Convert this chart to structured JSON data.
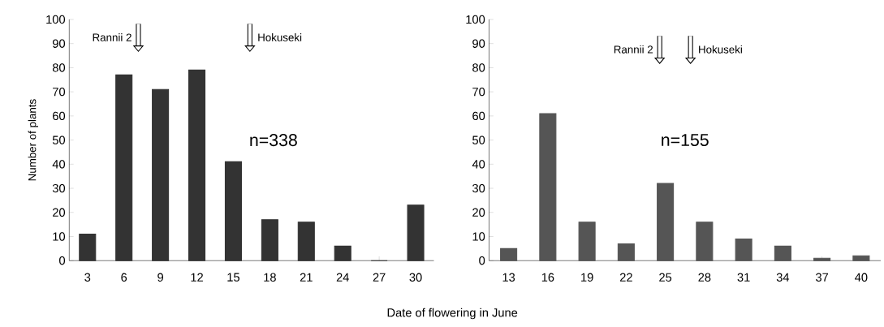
{
  "chart_data": [
    {
      "type": "bar",
      "ylabel": "Number of plants",
      "xlabel": "Date of flowering in June",
      "categories": [
        "3",
        "6",
        "9",
        "12",
        "15",
        "18",
        "21",
        "24",
        "27",
        "30"
      ],
      "values": [
        11,
        77,
        71,
        79,
        41,
        17,
        16,
        6,
        0,
        23
      ],
      "color": "#333333",
      "ylim": [
        0,
        100
      ],
      "yticks": [
        0,
        10,
        20,
        30,
        40,
        50,
        60,
        70,
        80,
        90,
        100
      ],
      "grid": false,
      "annotations": [
        "Rannii 2",
        "Hokuseki",
        "n=338"
      ]
    },
    {
      "type": "bar",
      "categories": [
        "13",
        "16",
        "19",
        "22",
        "25",
        "28",
        "31",
        "34",
        "37",
        "40"
      ],
      "values": [
        5,
        61,
        16,
        7,
        32,
        16,
        9,
        6,
        1,
        2
      ],
      "color": "#555555",
      "ylim": [
        0,
        100
      ],
      "yticks": [
        0,
        10,
        20,
        30,
        40,
        50,
        60,
        70,
        80,
        90,
        100
      ],
      "grid": false,
      "annotations": [
        "Rannii 2",
        "Hokuseki",
        "n=155"
      ]
    }
  ]
}
